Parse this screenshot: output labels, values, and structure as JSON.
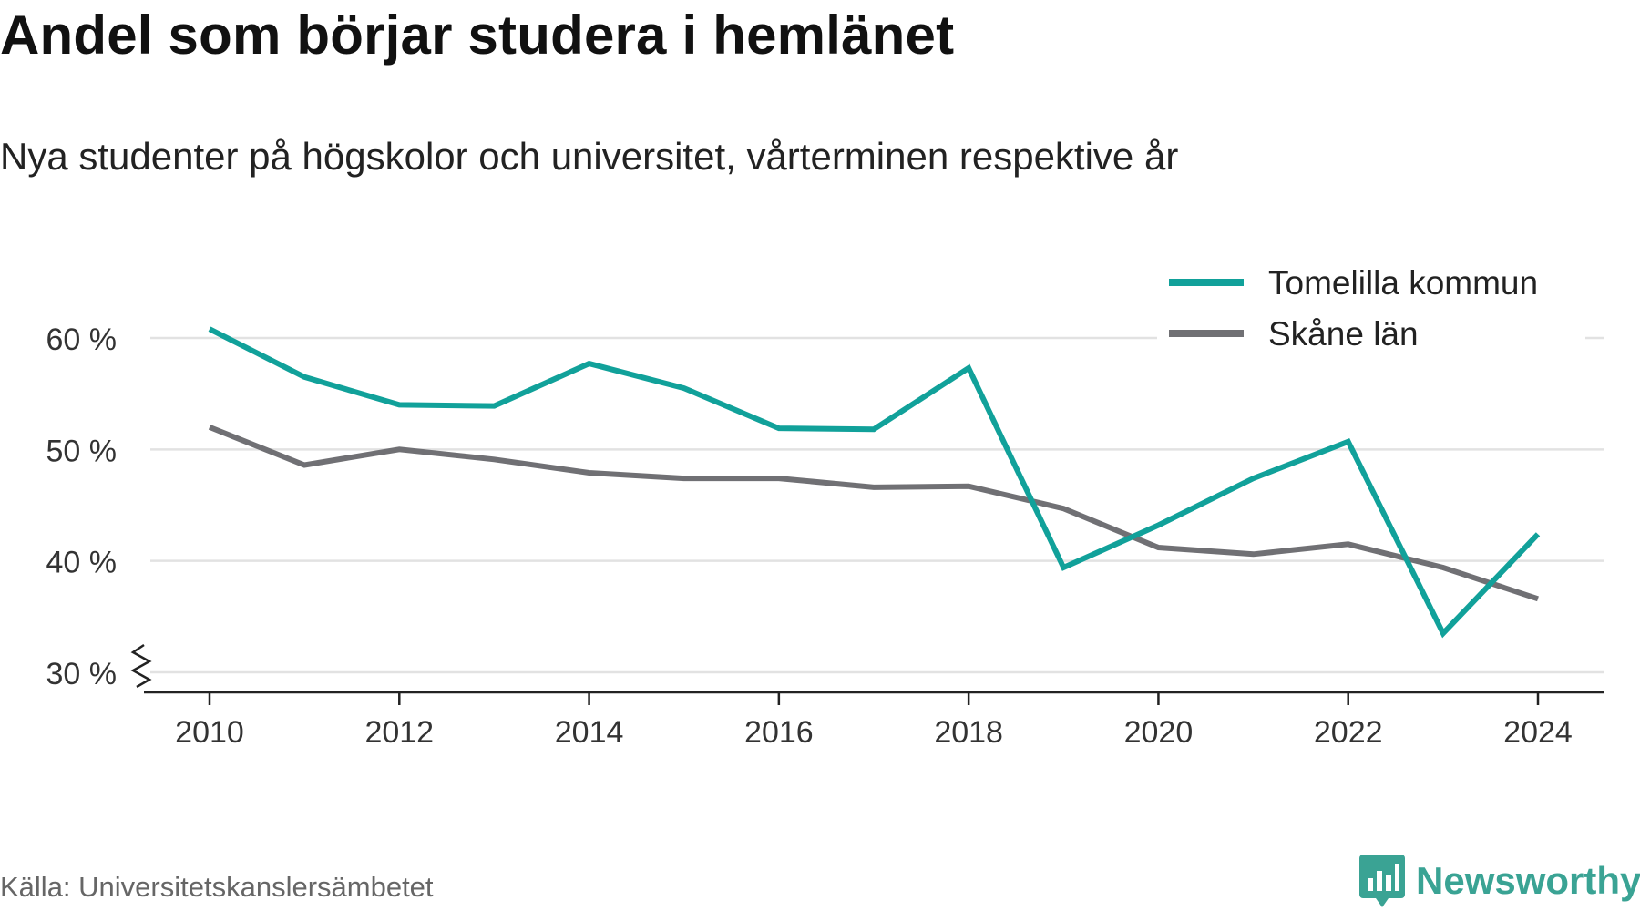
{
  "header": {
    "title": "Andel som börjar studera i hemlänet",
    "subtitle": "Nya studenter på högskolor och universitet, vårterminen respektive år"
  },
  "footer": {
    "source": "Källa: Universitetskanslersämbetet",
    "brand": "Newsworthy",
    "brand_icon": "bar-chart-speech-bubble-icon",
    "brand_color": "#3aa394"
  },
  "chart_data": {
    "type": "line",
    "x": [
      2010,
      2011,
      2012,
      2013,
      2014,
      2015,
      2016,
      2017,
      2018,
      2019,
      2020,
      2021,
      2022,
      2023,
      2024
    ],
    "x_ticks": [
      "2010",
      "2012",
      "2014",
      "2016",
      "2018",
      "2020",
      "2022",
      "2024"
    ],
    "y_ticks": [
      "30 %",
      "40 %",
      "50 %",
      "60 %"
    ],
    "ylim": [
      30,
      62
    ],
    "y_axis_break": true,
    "grid": true,
    "legend_position": "top-right",
    "series": [
      {
        "name": "Tomelilla kommun",
        "color": "#11a19a",
        "values": [
          60.8,
          56.5,
          54,
          53.9,
          57.7,
          55.5,
          51.9,
          51.8,
          57.3,
          39.4,
          43.2,
          47.4,
          50.7,
          33.5,
          42.4
        ]
      },
      {
        "name": "Skåne län",
        "color": "#707074",
        "values": [
          52,
          48.6,
          50,
          49.1,
          47.9,
          47.4,
          47.4,
          46.6,
          46.7,
          44.7,
          41.2,
          40.6,
          41.5,
          39.4,
          36.6
        ]
      }
    ]
  }
}
